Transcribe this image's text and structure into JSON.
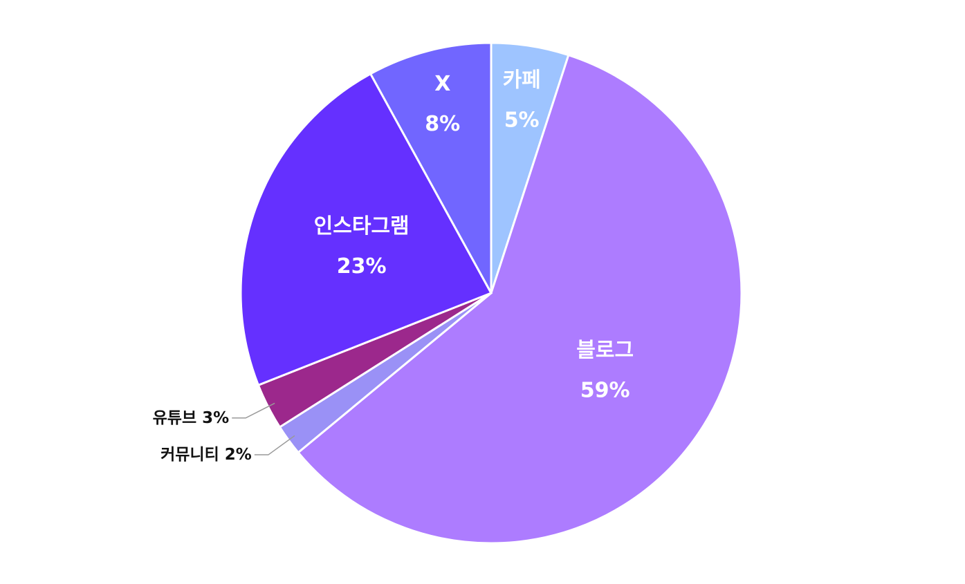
{
  "chart_data": {
    "type": "pie",
    "categories": [
      "카페",
      "블로그",
      "커뮤니티",
      "유튜브",
      "인스타그램",
      "X"
    ],
    "values": [
      5,
      59,
      2,
      3,
      23,
      8
    ],
    "value_labels": [
      "5%",
      "59%",
      "2%",
      "3%",
      "23%",
      "8%"
    ],
    "colors": [
      "#9ec4ff",
      "#ad7cff",
      "#9a91f6",
      "#9c288c",
      "#6530ff",
      "#7166ff"
    ]
  }
}
